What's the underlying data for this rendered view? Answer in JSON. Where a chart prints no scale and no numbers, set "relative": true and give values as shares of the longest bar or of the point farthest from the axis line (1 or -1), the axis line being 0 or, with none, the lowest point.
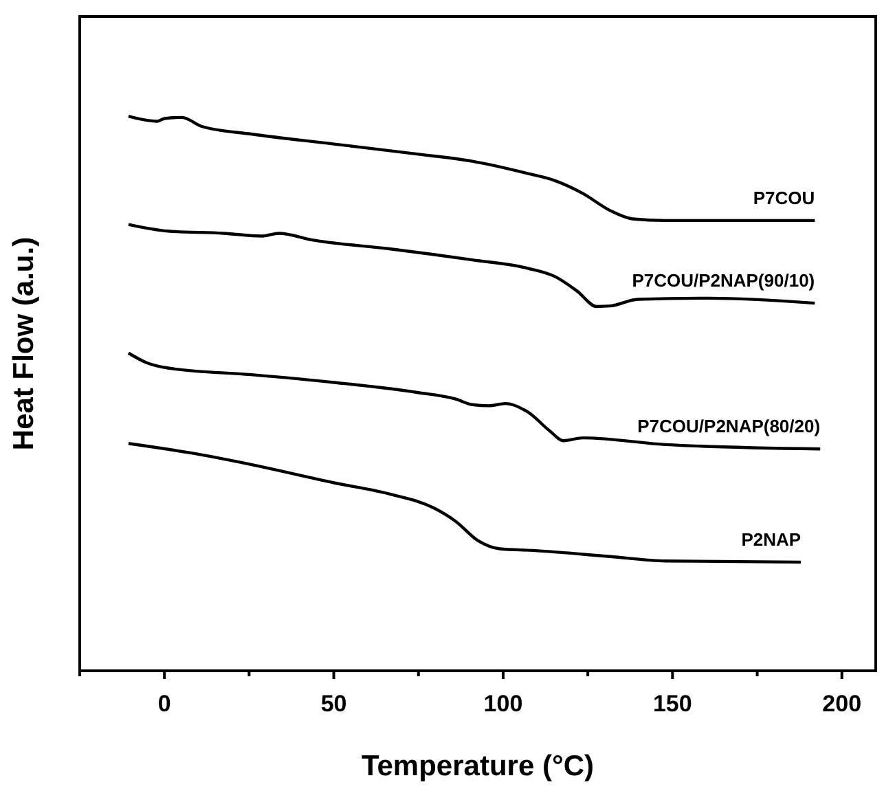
{
  "chart_data": {
    "type": "line",
    "xlabel": "Temperature (°C)",
    "ylabel": "Heat Flow (a.u.)",
    "relative": true,
    "xlim": [
      -25,
      210
    ],
    "xticks": [
      {
        "value": -25,
        "label": null
      },
      0,
      {
        "value": 25,
        "label": null
      },
      50,
      {
        "value": 75,
        "label": null
      },
      100,
      {
        "value": 125,
        "label": null
      },
      150,
      {
        "value": 175,
        "label": null
      },
      200
    ],
    "series": [
      {
        "name": "P7COU",
        "color": "#000000",
        "x": [
          -10.6,
          -2.1,
          0,
          5.2,
          10.9,
          25.6,
          50.1,
          74.6,
          90.9,
          107.2,
          115.3,
          123.5,
          131.6,
          138.2,
          148,
          192
        ],
        "values": [
          1.0,
          0.991,
          0.996,
          0.998,
          0.982,
          0.968,
          0.95,
          0.932,
          0.919,
          0.897,
          0.884,
          0.861,
          0.83,
          0.815,
          0.812,
          0.812
        ]
      },
      {
        "name": "P7COU/P2NAP(90/10)",
        "color": "#000000",
        "x": [
          -10.6,
          1.1,
          17.5,
          28.9,
          33.8,
          43.6,
          66.4,
          90.9,
          107.2,
          115.3,
          121.8,
          127.6,
          131.6,
          139.8,
          161,
          192
        ],
        "values": [
          0.805,
          0.793,
          0.789,
          0.784,
          0.789,
          0.777,
          0.761,
          0.741,
          0.726,
          0.711,
          0.685,
          0.657,
          0.658,
          0.67,
          0.672,
          0.663
        ]
      },
      {
        "name": "P7COU/P2NAP(80/20)",
        "color": "#000000",
        "x": [
          -10.6,
          -5.4,
          1.1,
          25.6,
          50.1,
          74.6,
          86,
          90.9,
          95.8,
          100.7,
          107.2,
          113.7,
          117.8,
          123.5,
          148,
          193.6
        ],
        "values": [
          0.573,
          0.556,
          0.546,
          0.534,
          0.52,
          0.502,
          0.49,
          0.48,
          0.478,
          0.482,
          0.467,
          0.433,
          0.415,
          0.42,
          0.408,
          0.4
        ]
      },
      {
        "name": "P2NAP",
        "color": "#000000",
        "x": [
          -10.6,
          7.7,
          25.6,
          50.1,
          66.4,
          79.4,
          85.9,
          92.5,
          99,
          108.8,
          131.6,
          148,
          187.9
        ],
        "values": [
          0.41,
          0.393,
          0.372,
          0.339,
          0.319,
          0.294,
          0.27,
          0.235,
          0.22,
          0.217,
          0.206,
          0.198,
          0.196
        ]
      }
    ]
  }
}
